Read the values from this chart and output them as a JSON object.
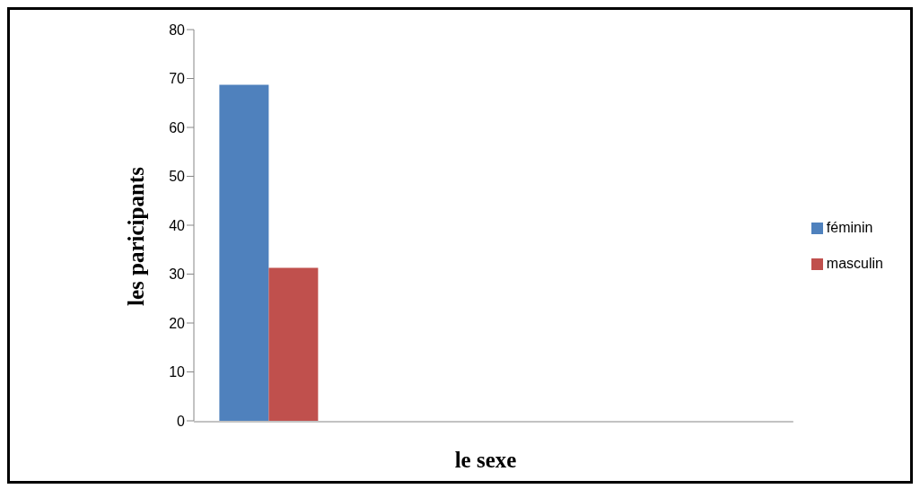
{
  "chart_data": {
    "type": "bar",
    "xlabel": "le sexe",
    "ylabel": "les paricipants",
    "categories": [
      null,
      null,
      null,
      null
    ],
    "series": [
      {
        "name": "féminin",
        "color": "#4f81bd",
        "values": [
          68.7,
          null,
          null,
          null
        ]
      },
      {
        "name": "masculin",
        "color": "#c0504d",
        "values": [
          31.3,
          null,
          null,
          null
        ]
      }
    ],
    "ylim": [
      0,
      80
    ],
    "yticks": [
      0,
      10,
      20,
      30,
      40,
      50,
      60,
      70,
      80
    ],
    "grid": false,
    "legend": "right"
  }
}
